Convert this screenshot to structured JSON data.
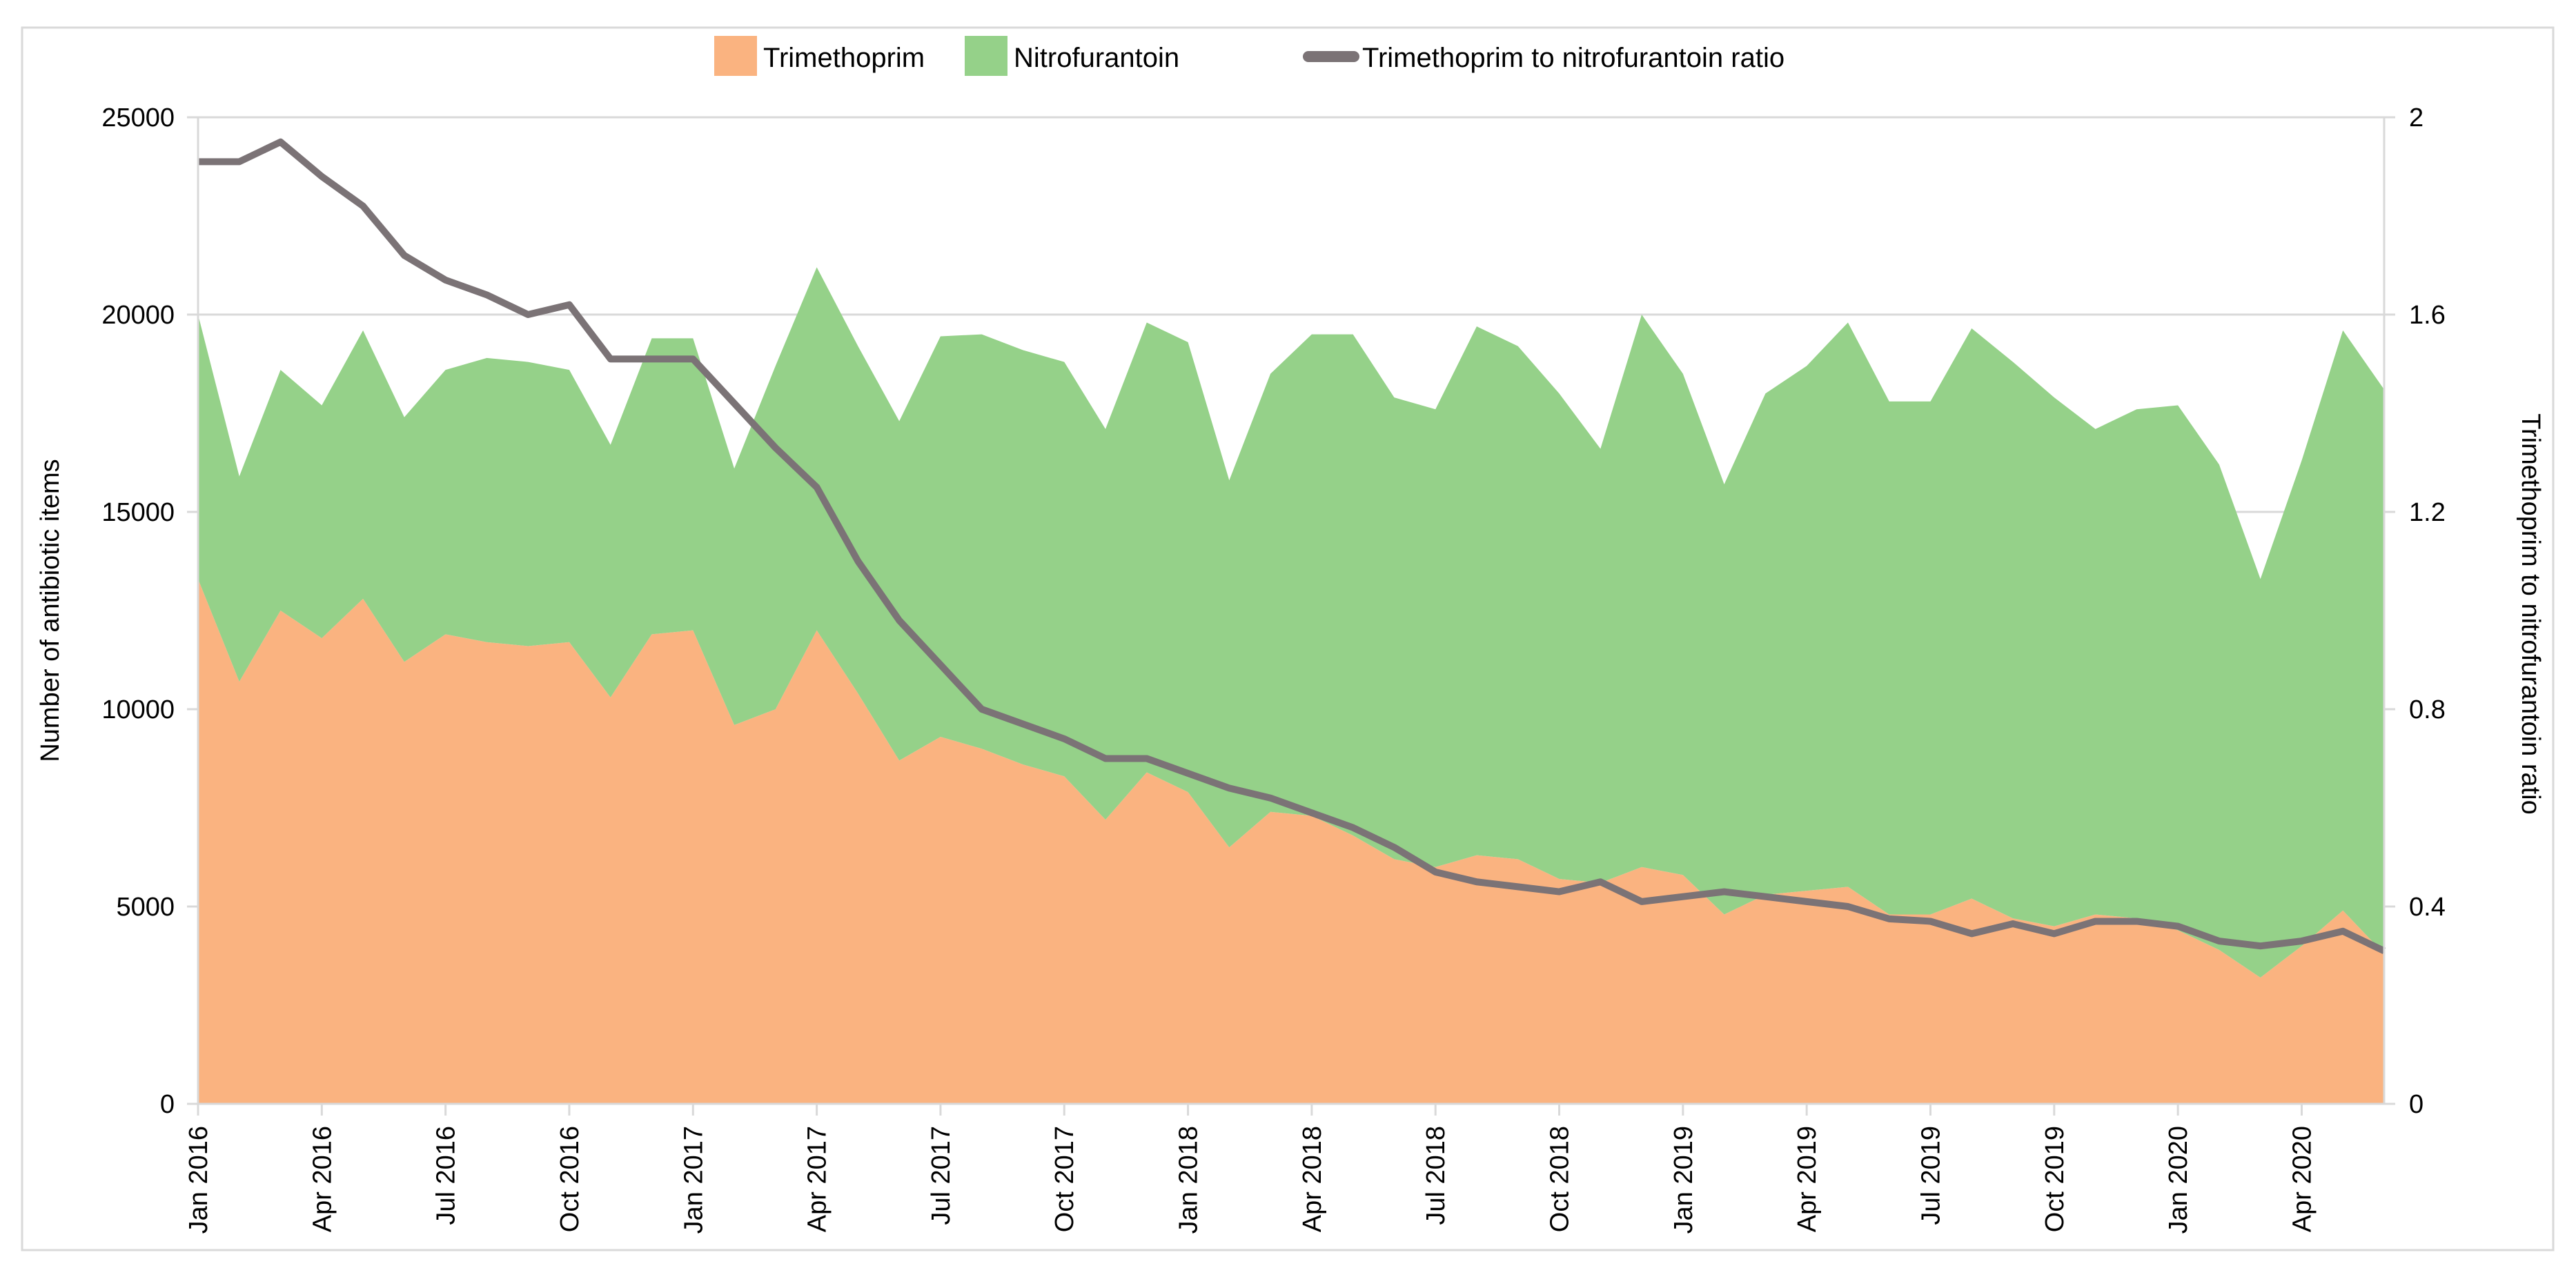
{
  "figure": {
    "border_color": "#d9d9d9",
    "background_color": "#ffffff"
  },
  "legend": {
    "items": [
      {
        "label": "Trimethoprim",
        "marker": "square-swatch",
        "color": "#fab380"
      },
      {
        "label": "Nitrofurantoin",
        "marker": "square-swatch",
        "color": "#95d189"
      },
      {
        "label": "Trimethoprim to nitrofurantoin ratio",
        "marker": "line-swatch",
        "color": "#7b7376"
      }
    ]
  },
  "y_axis_left": {
    "title": "Number of antibiotic items",
    "tick_labels": [
      "0",
      "5000",
      "10000",
      "15000",
      "20000",
      "25000"
    ],
    "tick_values": [
      0,
      5000,
      10000,
      15000,
      20000,
      25000
    ]
  },
  "y_axis_right": {
    "title": "Trimethoprim to nitrofurantoin ratio",
    "tick_labels": [
      "0",
      "0.4",
      "0.8",
      "1.2",
      "1.6",
      "2"
    ],
    "tick_values": [
      0,
      0.4,
      0.8,
      1.2,
      1.6,
      2
    ]
  },
  "x_axis": {
    "tick_every": 3,
    "visible_tick_labels": [
      "Jan 2016",
      "Apr 2016",
      "Jul 2016",
      "Oct 2016",
      "Jan 2017",
      "Apr 2017",
      "Jul 2017",
      "Oct 2017",
      "Jan 2018",
      "Apr 2018",
      "Jul 2018",
      "Oct 2018",
      "Jan 2019",
      "Apr 2019",
      "Jul 2019",
      "Oct 2019",
      "Jan 2020",
      "Apr 2020"
    ]
  },
  "chart_data": {
    "type": "area",
    "subtype": "stacked-area-with-line",
    "title": "",
    "xlabel": "",
    "ylabel_left": "Number of antibiotic items",
    "ylabel_right": "Trimethoprim to nitrofurantoin ratio",
    "ylim_left": [
      0,
      25000
    ],
    "ylim_right": [
      0,
      2
    ],
    "grid": "horizontal",
    "legend_position": "top-center",
    "categories": [
      "Jan 2016",
      "Feb 2016",
      "Mar 2016",
      "Apr 2016",
      "May 2016",
      "Jun 2016",
      "Jul 2016",
      "Aug 2016",
      "Sep 2016",
      "Oct 2016",
      "Nov 2016",
      "Dec 2016",
      "Jan 2017",
      "Feb 2017",
      "Mar 2017",
      "Apr 2017",
      "May 2017",
      "Jun 2017",
      "Jul 2017",
      "Aug 2017",
      "Sep 2017",
      "Oct 2017",
      "Nov 2017",
      "Dec 2017",
      "Jan 2018",
      "Feb 2018",
      "Mar 2018",
      "Apr 2018",
      "May 2018",
      "Jun 2018",
      "Jul 2018",
      "Aug 2018",
      "Sep 2018",
      "Oct 2018",
      "Nov 2018",
      "Dec 2018",
      "Jan 2019",
      "Feb 2019",
      "Mar 2019",
      "Apr 2019",
      "May 2019",
      "Jun 2019",
      "Jul 2019",
      "Aug 2019",
      "Sep 2019",
      "Oct 2019",
      "Nov 2019",
      "Dec 2019",
      "Jan 2020",
      "Feb 2020",
      "Mar 2020",
      "Apr 2020",
      "May 2020",
      "Jun 2020"
    ],
    "series": [
      {
        "name": "Trimethoprim",
        "axis": "left",
        "style": "area-stacked",
        "color": "#fab380",
        "values": [
          13300,
          10700,
          12500,
          11800,
          12800,
          11200,
          11900,
          11700,
          11600,
          11700,
          10300,
          11900,
          12000,
          9600,
          10000,
          12000,
          10400,
          8700,
          9300,
          9000,
          8600,
          8300,
          7200,
          8400,
          7900,
          6500,
          7400,
          7300,
          6800,
          6200,
          6000,
          6300,
          6200,
          5700,
          5600,
          6000,
          5800,
          4800,
          5300,
          5400,
          5500,
          4800,
          4800,
          5200,
          4700,
          4500,
          4800,
          4700,
          4400,
          3900,
          3200,
          4000,
          4900,
          3800
        ]
      },
      {
        "name": "Nitrofurantoin",
        "axis": "left",
        "style": "area-stacked",
        "color": "#95d189",
        "values": [
          6700,
          5200,
          6100,
          5900,
          6800,
          6200,
          6700,
          7200,
          7200,
          6900,
          6400,
          7500,
          7400,
          6500,
          8700,
          9200,
          8800,
          8600,
          10150,
          10500,
          10500,
          10500,
          9900,
          11400,
          11400,
          9300,
          11100,
          12200,
          12700,
          11700,
          11600,
          13400,
          13000,
          12300,
          11000,
          14000,
          12700,
          10900,
          12700,
          13300,
          14300,
          13000,
          13000,
          14450,
          14100,
          13400,
          12300,
          12900,
          13300,
          12300,
          10100,
          12300,
          14700,
          14300
        ]
      },
      {
        "name": "Trimethoprim to nitrofurantoin ratio",
        "axis": "right",
        "style": "line",
        "color": "#7b7376",
        "values": [
          1.91,
          1.91,
          1.95,
          1.88,
          1.82,
          1.72,
          1.67,
          1.64,
          1.6,
          1.62,
          1.51,
          1.51,
          1.51,
          1.42,
          1.33,
          1.25,
          1.1,
          0.98,
          0.89,
          0.8,
          0.77,
          0.74,
          0.7,
          0.7,
          0.67,
          0.64,
          0.62,
          0.59,
          0.56,
          0.52,
          0.47,
          0.45,
          0.44,
          0.43,
          0.45,
          0.41,
          0.42,
          0.43,
          0.42,
          0.41,
          0.4,
          0.375,
          0.37,
          0.345,
          0.365,
          0.345,
          0.37,
          0.37,
          0.36,
          0.33,
          0.32,
          0.33,
          0.35,
          0.31
        ]
      }
    ],
    "colors": {
      "gridline": "#d9d9d9",
      "axis_line": "#d9d9d9",
      "text": "#000000"
    }
  }
}
